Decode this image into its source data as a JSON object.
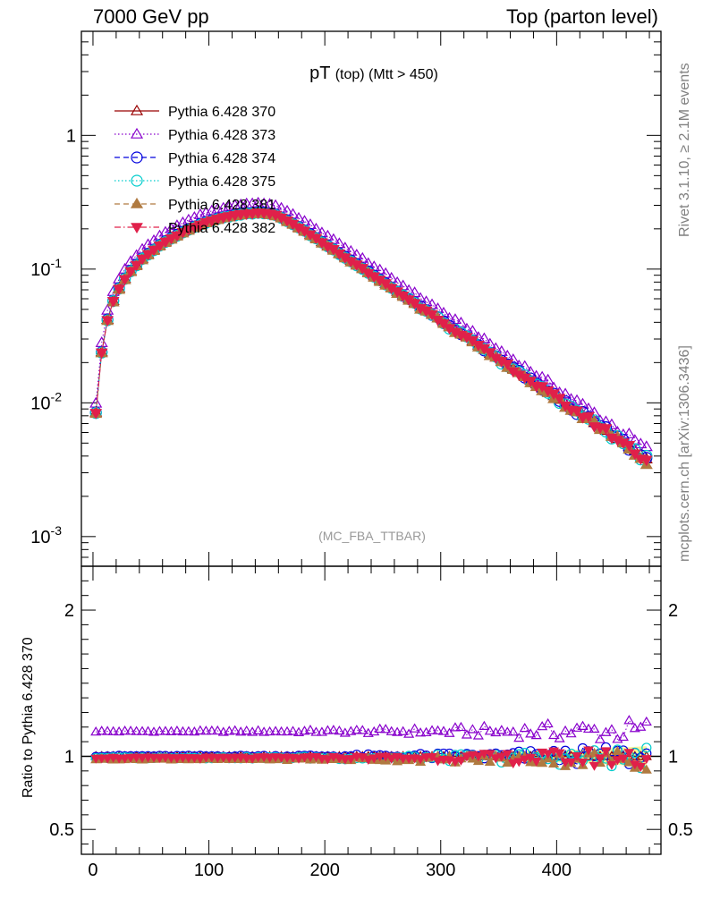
{
  "header": {
    "left": "7000 GeV pp",
    "right": "Top (parton level)"
  },
  "side_text": {
    "rivet": "Rivet 3.1.10, ≥ 2.1M events",
    "mcplots": "mcplots.cern.ch [arXiv:1306.3436]"
  },
  "chart_data": [
    {
      "type": "line",
      "title": "pT",
      "title_sub": "(top) (Mtt > 450)",
      "annotation": "(MC_FBA_TTBAR)",
      "xlim": [
        -10,
        490
      ],
      "ylim": [
        0.0006,
        6
      ],
      "yscale": "log",
      "y_ticks": [
        {
          "value": 1,
          "label": "1"
        },
        {
          "value": 0.1,
          "label": "10^-1"
        },
        {
          "value": 0.01,
          "label": "10^-2"
        },
        {
          "value": 0.001,
          "label": "10^-3"
        }
      ],
      "legend_placement": "top-left",
      "x": [
        2.5,
        7.5,
        12.5,
        17.5,
        22.5,
        27.5,
        32.5,
        37.5,
        42.5,
        47.5,
        52.5,
        57.5,
        62.5,
        67.5,
        72.5,
        77.5,
        82.5,
        87.5,
        92.5,
        97.5,
        102.5,
        107.5,
        112.5,
        117.5,
        122.5,
        127.5,
        132.5,
        137.5,
        142.5,
        147.5,
        152.5,
        157.5,
        162.5,
        167.5,
        172.5,
        177.5,
        182.5,
        187.5,
        192.5,
        197.5,
        202.5,
        207.5,
        212.5,
        217.5,
        222.5,
        227.5,
        232.5,
        237.5,
        242.5,
        247.5,
        252.5,
        257.5,
        262.5,
        267.5,
        272.5,
        277.5,
        282.5,
        287.5,
        292.5,
        297.5,
        302.5,
        307.5,
        312.5,
        317.5,
        322.5,
        327.5,
        332.5,
        337.5,
        342.5,
        347.5,
        352.5,
        357.5,
        362.5,
        367.5,
        372.5,
        377.5,
        382.5,
        387.5,
        392.5,
        397.5,
        402.5,
        407.5,
        412.5,
        417.5,
        422.5,
        427.5,
        432.5,
        437.5,
        442.5,
        447.5,
        452.5,
        457.5,
        462.5,
        467.5,
        472.5,
        477.5
      ],
      "reference_values": [
        0.0085,
        0.024,
        0.042,
        0.058,
        0.072,
        0.085,
        0.097,
        0.108,
        0.12,
        0.13,
        0.14,
        0.151,
        0.161,
        0.171,
        0.18,
        0.19,
        0.199,
        0.208,
        0.217,
        0.225,
        0.232,
        0.239,
        0.245,
        0.25,
        0.255,
        0.259,
        0.262,
        0.264,
        0.265,
        0.264,
        0.261,
        0.255,
        0.244,
        0.232,
        0.219,
        0.206,
        0.194,
        0.182,
        0.171,
        0.16,
        0.15,
        0.141,
        0.132,
        0.124,
        0.116,
        0.108,
        0.102,
        0.095,
        0.089,
        0.083,
        0.078,
        0.073,
        0.068,
        0.064,
        0.06,
        0.056,
        0.052,
        0.049,
        0.046,
        0.043,
        0.04,
        0.037,
        0.035,
        0.033,
        0.031,
        0.029,
        0.027,
        0.025,
        0.0234,
        0.0219,
        0.0205,
        0.0192,
        0.018,
        0.0168,
        0.0157,
        0.0147,
        0.0138,
        0.0129,
        0.0121,
        0.0113,
        0.0106,
        0.0099,
        0.0092,
        0.0087,
        0.0081,
        0.0076,
        0.0071,
        0.0066,
        0.0062,
        0.0058,
        0.0054,
        0.0051,
        0.0047,
        0.0044,
        0.0041,
        0.0038
      ],
      "series": [
        {
          "name": "Pythia 6.428 370",
          "color": "#990000",
          "marker": "triangle-open",
          "line": "solid",
          "scale": 1.0
        },
        {
          "name": "Pythia 6.428 373",
          "color": "#8800cc",
          "marker": "triangle-open",
          "line": "dotted",
          "scale": 1.17
        },
        {
          "name": "Pythia 6.428 374",
          "color": "#0000dd",
          "marker": "circle-open",
          "line": "dashed",
          "scale": 1.0
        },
        {
          "name": "Pythia 6.428 375",
          "color": "#00cccc",
          "marker": "circle-open",
          "line": "dotted",
          "scale": 0.99
        },
        {
          "name": "Pythia 6.428 381",
          "color": "#b07a40",
          "marker": "triangle-filled",
          "line": "dashed",
          "scale": 0.98
        },
        {
          "name": "Pythia 6.428 382",
          "color": "#e0204a",
          "marker": "triangle-down-filled",
          "line": "dashdot",
          "scale": 0.99
        }
      ]
    },
    {
      "type": "line",
      "ylabel": "Ratio to Pythia 6.428 370",
      "xlim": [
        -10,
        490
      ],
      "ylim": [
        0.33,
        2.3
      ],
      "x_ticks": [
        0,
        100,
        200,
        300,
        400
      ],
      "y_ticks": [
        0.5,
        1,
        2
      ],
      "series_ratios": [
        {
          "name": "Pythia 6.428 370",
          "value": 1.0
        },
        {
          "name": "Pythia 6.428 373",
          "value": 1.17
        },
        {
          "name": "Pythia 6.428 374",
          "value": 1.0
        },
        {
          "name": "Pythia 6.428 375",
          "value": 0.99
        },
        {
          "name": "Pythia 6.428 381",
          "value": 0.98
        },
        {
          "name": "Pythia 6.428 382",
          "value": 0.99
        }
      ]
    }
  ]
}
